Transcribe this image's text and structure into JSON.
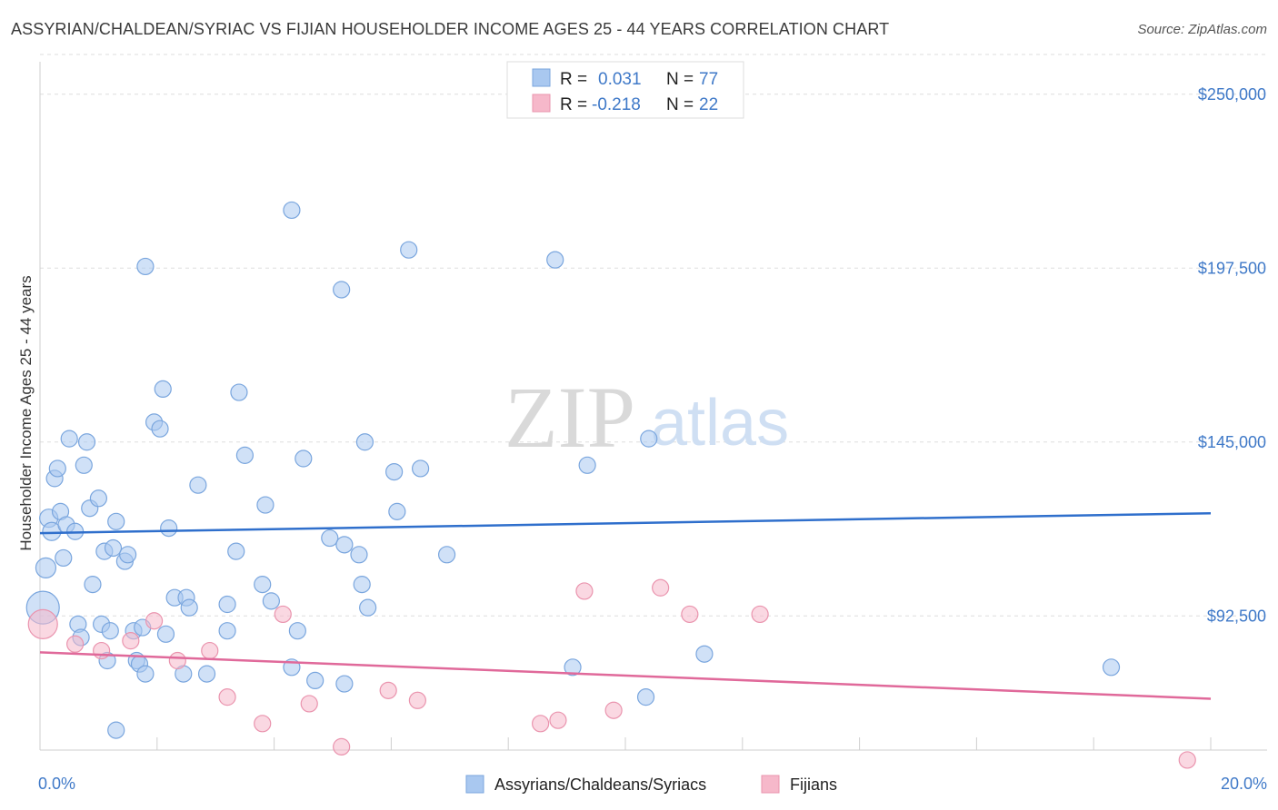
{
  "header": {
    "title": "ASSYRIAN/CHALDEAN/SYRIAC VS FIJIAN HOUSEHOLDER INCOME AGES 25 - 44 YEARS CORRELATION CHART",
    "source": "Source: ZipAtlas.com"
  },
  "watermark": {
    "zip": "ZIP",
    "atlas": "atlas"
  },
  "legend": {
    "r_label": "R =",
    "n_label": "N =",
    "rows": [
      {
        "r": "0.031",
        "n": "77",
        "color": "#a9c8f0"
      },
      {
        "r": "-0.218",
        "n": "22",
        "color": "#f6b8ca"
      }
    ]
  },
  "chart_data": {
    "type": "scatter",
    "title": "ASSYRIAN/CHALDEAN/SYRIAC VS FIJIAN HOUSEHOLDER INCOME AGES 25 - 44 YEARS CORRELATION CHART",
    "xlabel": "",
    "ylabel": "Householder Income Ages 25 - 44 years",
    "x_unit": "%",
    "xlim": [
      0,
      20
    ],
    "ylim": [
      52000,
      262000
    ],
    "y_ticks": [
      92500,
      145000,
      197500,
      250000
    ],
    "y_tick_labels": [
      "$92,500",
      "$145,000",
      "$197,500",
      "$250,000"
    ],
    "x_tick_labels": [
      "0.0%",
      "20.0%"
    ],
    "grid": "horizontal dashed",
    "legend_position": "top-center",
    "series": [
      {
        "name": "Assyrians/Chaldeans/Syriacs",
        "color": "#a9c8f0",
        "stroke": "#7aa6de",
        "trend": {
          "x": [
            0,
            20
          ],
          "y": [
            117500,
            123500
          ],
          "color": "#2f6fcc"
        },
        "points": [
          [
            0.05,
            95000,
            18
          ],
          [
            0.1,
            107000,
            11
          ],
          [
            0.15,
            122000,
            10
          ],
          [
            0.2,
            118000,
            10
          ],
          [
            0.25,
            134000,
            9
          ],
          [
            0.3,
            137000,
            9
          ],
          [
            0.35,
            124000,
            9
          ],
          [
            0.4,
            110000,
            9
          ],
          [
            0.45,
            120000,
            9
          ],
          [
            0.5,
            146000,
            9
          ],
          [
            0.6,
            118000,
            9
          ],
          [
            0.65,
            90000,
            9
          ],
          [
            0.7,
            86000,
            9
          ],
          [
            0.75,
            138000,
            9
          ],
          [
            0.8,
            145000,
            9
          ],
          [
            0.85,
            125000,
            9
          ],
          [
            0.9,
            102000,
            9
          ],
          [
            1.0,
            128000,
            9
          ],
          [
            1.05,
            90000,
            9
          ],
          [
            1.1,
            112000,
            9
          ],
          [
            1.15,
            79000,
            9
          ],
          [
            1.2,
            88000,
            9
          ],
          [
            1.25,
            113000,
            9
          ],
          [
            1.3,
            121000,
            9
          ],
          [
            1.45,
            109000,
            9
          ],
          [
            1.5,
            111000,
            9
          ],
          [
            1.6,
            88000,
            9
          ],
          [
            1.65,
            79000,
            9
          ],
          [
            1.7,
            78000,
            9
          ],
          [
            1.75,
            89000,
            9
          ],
          [
            1.8,
            75000,
            9
          ],
          [
            1.8,
            198000,
            9
          ],
          [
            1.95,
            151000,
            9
          ],
          [
            2.05,
            149000,
            9
          ],
          [
            2.1,
            161000,
            9
          ],
          [
            2.15,
            87000,
            9
          ],
          [
            2.2,
            119000,
            9
          ],
          [
            2.3,
            98000,
            9
          ],
          [
            2.45,
            75000,
            9
          ],
          [
            2.5,
            98000,
            9
          ],
          [
            2.55,
            95000,
            9
          ],
          [
            2.7,
            132000,
            9
          ],
          [
            2.85,
            75000,
            9
          ],
          [
            3.2,
            96000,
            9
          ],
          [
            3.2,
            88000,
            9
          ],
          [
            3.35,
            112000,
            9
          ],
          [
            3.4,
            160000,
            9
          ],
          [
            3.5,
            141000,
            9
          ],
          [
            3.8,
            102000,
            9
          ],
          [
            3.85,
            126000,
            9
          ],
          [
            3.95,
            97000,
            9
          ],
          [
            4.3,
            215000,
            9
          ],
          [
            4.3,
            77000,
            9
          ],
          [
            4.4,
            88000,
            9
          ],
          [
            4.5,
            140000,
            9
          ],
          [
            4.7,
            73000,
            9
          ],
          [
            4.95,
            116000,
            9
          ],
          [
            5.15,
            191000,
            9
          ],
          [
            5.2,
            114000,
            9
          ],
          [
            5.2,
            72000,
            9
          ],
          [
            5.45,
            111000,
            9
          ],
          [
            5.5,
            102000,
            9
          ],
          [
            5.55,
            145000,
            9
          ],
          [
            5.6,
            95000,
            9
          ],
          [
            6.05,
            136000,
            9
          ],
          [
            6.1,
            124000,
            9
          ],
          [
            6.3,
            203000,
            9
          ],
          [
            6.5,
            137000,
            9
          ],
          [
            6.95,
            111000,
            9
          ],
          [
            8.8,
            200000,
            9
          ],
          [
            9.1,
            77000,
            9
          ],
          [
            9.35,
            138000,
            9
          ],
          [
            10.4,
            146000,
            9
          ],
          [
            10.35,
            68000,
            9
          ],
          [
            11.35,
            81000,
            9
          ],
          [
            18.3,
            77000,
            9
          ],
          [
            1.3,
            58000,
            9
          ]
        ]
      },
      {
        "name": "Fijians",
        "color": "#f6b8ca",
        "stroke": "#ea94ae",
        "trend": {
          "x": [
            0,
            20
          ],
          "y": [
            81500,
            67500
          ],
          "color": "#e0699a"
        },
        "points": [
          [
            0.05,
            90000,
            16
          ],
          [
            0.6,
            84000,
            9
          ],
          [
            1.05,
            82000,
            9
          ],
          [
            1.55,
            85000,
            9
          ],
          [
            1.95,
            91000,
            9
          ],
          [
            2.35,
            79000,
            9
          ],
          [
            2.9,
            82000,
            9
          ],
          [
            3.2,
            68000,
            9
          ],
          [
            3.8,
            60000,
            9
          ],
          [
            4.15,
            93000,
            9
          ],
          [
            4.6,
            66000,
            9
          ],
          [
            5.15,
            53000,
            9
          ],
          [
            5.95,
            70000,
            9
          ],
          [
            6.45,
            67000,
            9
          ],
          [
            8.55,
            60000,
            9
          ],
          [
            8.85,
            61000,
            9
          ],
          [
            9.3,
            100000,
            9
          ],
          [
            9.8,
            64000,
            9
          ],
          [
            10.6,
            101000,
            9
          ],
          [
            11.1,
            93000,
            9
          ],
          [
            12.3,
            93000,
            9
          ],
          [
            19.6,
            49000,
            9
          ]
        ]
      }
    ]
  }
}
